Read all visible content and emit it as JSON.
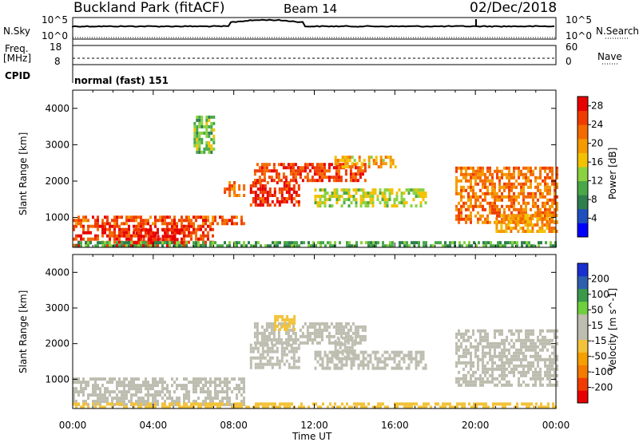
{
  "header": {
    "title": "Buckland Park (fitACF)",
    "beam": "Beam 14",
    "date": "02/Dec/2018"
  },
  "status": {
    "nsky_label": "N.Sky",
    "nsky_ticks": [
      "10^5",
      "10^0"
    ],
    "nsearch_label": "N.Search",
    "nsearch_ticks": [
      "10^5",
      "10^0"
    ],
    "freq_label_line1": "Freq.",
    "freq_label_line2": "[MHz]",
    "freq_ticks": [
      "18",
      "8"
    ],
    "nave_label": "Nave",
    "nave_ticks": [
      "60",
      "0"
    ],
    "cpid_label": "CPID",
    "cpid_value": "normal (fast) 151"
  },
  "colors": {
    "power_scale": [
      "#0000ff",
      "#1f4fbf",
      "#2e7f4e",
      "#48a848",
      "#8bd140",
      "#f2c200",
      "#f59a00",
      "#f56a00",
      "#f03c00",
      "#e80000"
    ],
    "velocity_scale": [
      "#e80000",
      "#f03c00",
      "#f57a00",
      "#f5a000",
      "#f2c23a",
      "#bdbdb0",
      "#bdbdb0",
      "#6fcf3f",
      "#3a9a4a",
      "#2e5fae",
      "#1a2fd0"
    ],
    "ground_scatter": "#bdbdb0"
  },
  "chart_data": [
    {
      "type": "heatmap",
      "name": "power",
      "xlabel": "Time UT",
      "ylabel": "Slant Range [km]",
      "x_ticks": [
        "00:00",
        "04:00",
        "08:00",
        "12:00",
        "16:00",
        "20:00",
        "00:00"
      ],
      "xlim": [
        0,
        24
      ],
      "ylim": [
        180,
        4500
      ],
      "y_ticks": [
        1000,
        2000,
        3000,
        4000
      ],
      "colorbar": {
        "label": "Power [dB]",
        "ticks": [
          4,
          8,
          12,
          16,
          20,
          24,
          28
        ],
        "range": [
          0,
          30
        ]
      },
      "regions": [
        {
          "t0": 0.0,
          "t1": 7.0,
          "r0": 200,
          "r1": 800,
          "value": 26
        },
        {
          "t0": 0.0,
          "t1": 8.5,
          "r0": 800,
          "r1": 1050,
          "value": 24
        },
        {
          "t0": 3.0,
          "t1": 5.5,
          "r0": 300,
          "r1": 700,
          "value": 29
        },
        {
          "t0": 7.5,
          "t1": 8.5,
          "r0": 1600,
          "r1": 2000,
          "value": 22
        },
        {
          "t0": 8.8,
          "t1": 11.2,
          "r0": 1300,
          "r1": 2000,
          "value": 27
        },
        {
          "t0": 9.0,
          "t1": 14.5,
          "r0": 2000,
          "r1": 2500,
          "value": 25
        },
        {
          "t0": 12.0,
          "t1": 17.5,
          "r0": 1300,
          "r1": 1800,
          "value": 14
        },
        {
          "t0": 13.0,
          "t1": 16.0,
          "r0": 2400,
          "r1": 2700,
          "value": 18
        },
        {
          "t0": 6.0,
          "t1": 7.0,
          "r0": 2800,
          "r1": 3800,
          "value": 12
        },
        {
          "t0": 19.0,
          "t1": 24.0,
          "r0": 900,
          "r1": 2400,
          "value": 22
        },
        {
          "t0": 21.0,
          "t1": 24.0,
          "r0": 600,
          "r1": 1100,
          "value": 20
        },
        {
          "t0": 0.0,
          "t1": 24.0,
          "r0": 180,
          "r1": 350,
          "value": 10
        }
      ]
    },
    {
      "type": "heatmap",
      "name": "velocity",
      "xlabel": "Time UT",
      "ylabel": "Slant Range [km]",
      "x_ticks": [
        "00:00",
        "04:00",
        "08:00",
        "12:00",
        "16:00",
        "20:00",
        "00:00"
      ],
      "xlim": [
        0,
        24
      ],
      "ylim": [
        180,
        4500
      ],
      "y_ticks": [
        1000,
        2000,
        3000,
        4000
      ],
      "colorbar": {
        "label": "Velocity [m s^-1]",
        "ticks": [
          200,
          100,
          50,
          15,
          -15,
          -50,
          -100,
          -200
        ],
        "range": [
          -250,
          250
        ]
      },
      "regions": [
        {
          "t0": 0.0,
          "t1": 8.5,
          "r0": 300,
          "r1": 1050,
          "value": 0
        },
        {
          "t0": 8.8,
          "t1": 11.2,
          "r0": 1300,
          "r1": 2000,
          "value": 0
        },
        {
          "t0": 9.0,
          "t1": 14.5,
          "r0": 2000,
          "r1": 2600,
          "value": 0
        },
        {
          "t0": 12.0,
          "t1": 17.5,
          "r0": 1300,
          "r1": 1800,
          "value": 0
        },
        {
          "t0": 19.0,
          "t1": 24.0,
          "r0": 800,
          "r1": 2400,
          "value": 0
        },
        {
          "t0": 10.0,
          "t1": 11.0,
          "r0": 2400,
          "r1": 2800,
          "value": -30
        },
        {
          "t0": 13.0,
          "t1": 14.0,
          "r0": 1600,
          "r1": 2200,
          "value": 30
        },
        {
          "t0": 0.0,
          "t1": 24.0,
          "r0": 180,
          "r1": 350,
          "value": -60
        }
      ]
    }
  ]
}
